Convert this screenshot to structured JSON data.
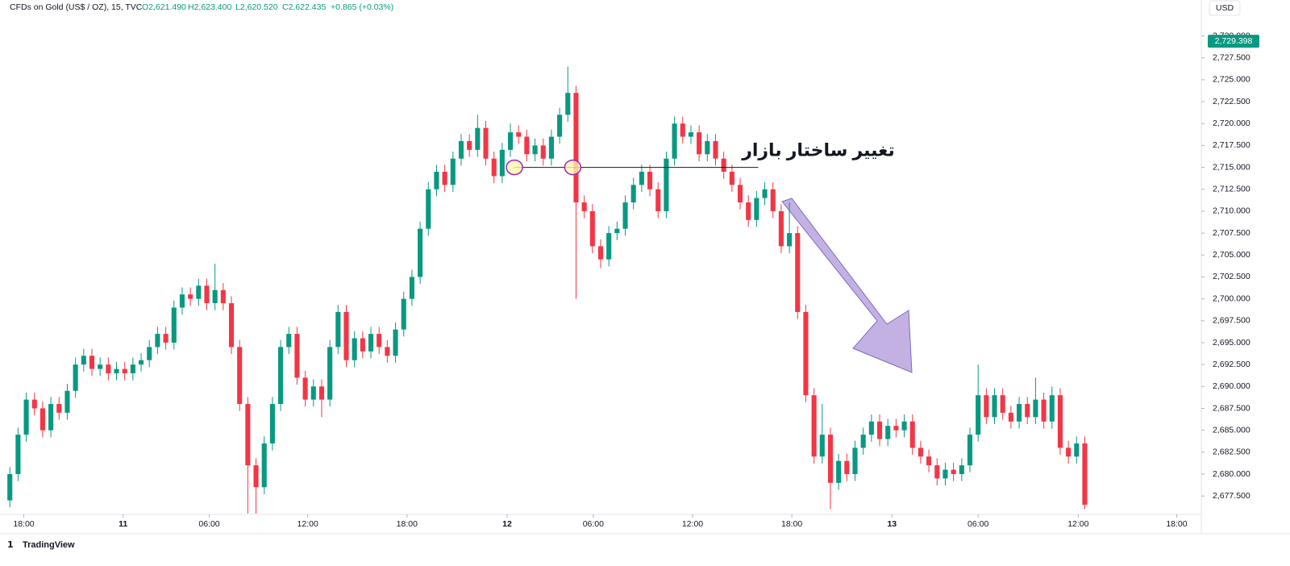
{
  "chart_data": {
    "type": "candlestick",
    "title": "CFDs on Gold (US$ / OZ), 15, TVC",
    "legend_items": [
      "O2,621.490",
      "H2,623.400",
      "L2,620.520",
      "C2,622.435",
      "+0.865 (+0.03%)"
    ],
    "currency": "USD",
    "brand": "TradingView",
    "up_color": "#089981",
    "down_color": "#f23645",
    "grid": false,
    "last_price": {
      "value": 2729.398,
      "label": "2,729.398"
    },
    "annotation": {
      "text": "تغییر ساختار بازار",
      "level": 2715
    },
    "xlim": [
      -1.2,
      145.2
    ],
    "xticks": [
      {
        "value": 1.7,
        "label": "18:00"
      },
      {
        "value": 13.8,
        "label": "11"
      },
      {
        "value": 24.3,
        "label": "06:00"
      },
      {
        "value": 36.3,
        "label": "12:00"
      },
      {
        "value": 48.4,
        "label": "18:00"
      },
      {
        "value": 60.6,
        "label": "12"
      },
      {
        "value": 71.1,
        "label": "06:00"
      },
      {
        "value": 83.2,
        "label": "12:00"
      },
      {
        "value": 95.3,
        "label": "18:00"
      },
      {
        "value": 107.5,
        "label": "13"
      },
      {
        "value": 118,
        "label": "06:00"
      },
      {
        "value": 130.2,
        "label": "12:00"
      },
      {
        "value": 142.2,
        "label": "18:00"
      }
    ],
    "ylim": [
      2675.4,
      2734.1
    ],
    "yticks": [
      {
        "value": 2677.5,
        "label": "2,677.500"
      },
      {
        "value": 2680,
        "label": "2,680.000"
      },
      {
        "value": 2682.5,
        "label": "2,682.500"
      },
      {
        "value": 2685,
        "label": "2,685.000"
      },
      {
        "value": 2687.5,
        "label": "2,687.500"
      },
      {
        "value": 2690,
        "label": "2,690.000"
      },
      {
        "value": 2692.5,
        "label": "2,692.500"
      },
      {
        "value": 2695,
        "label": "2,695.000"
      },
      {
        "value": 2697.5,
        "label": "2,697.500"
      },
      {
        "value": 2700,
        "label": "2,700.000"
      },
      {
        "value": 2702.5,
        "label": "2,702.500"
      },
      {
        "value": 2705,
        "label": "2,705.000"
      },
      {
        "value": 2707.5,
        "label": "2,707.500"
      },
      {
        "value": 2710,
        "label": "2,710.000"
      },
      {
        "value": 2712.5,
        "label": "2,712.500"
      },
      {
        "value": 2715,
        "label": "2,715.000"
      },
      {
        "value": 2717.5,
        "label": "2,717.500"
      },
      {
        "value": 2720,
        "label": "2,720.000"
      },
      {
        "value": 2722.5,
        "label": "2,722.500"
      },
      {
        "value": 2725,
        "label": "2,725.000"
      },
      {
        "value": 2727.5,
        "label": "2,727.500"
      },
      {
        "value": 2730,
        "label": "2,730.000"
      }
    ],
    "open": [
      2677.0,
      2680.0,
      2684.5,
      2688.5,
      2687.5,
      2685.0,
      2688.0,
      2687.0,
      2689.5,
      2692.5,
      2693.5,
      2692.0,
      2692.5,
      2691.5,
      2692.0,
      2691.5,
      2692.5,
      2693.0,
      2694.5,
      2696.0,
      2695.0,
      2699.0,
      2700.5,
      2700.0,
      2701.5,
      2699.5,
      2701.0,
      2699.5,
      2694.5,
      2688.0,
      2681.0,
      2678.5,
      2683.5,
      2688.0,
      2694.5,
      2696.0,
      2691.0,
      2688.5,
      2690.0,
      2688.5,
      2694.5,
      2698.5,
      2693.0,
      2695.5,
      2694.0,
      2696.0,
      2694.5,
      2693.5,
      2696.5,
      2700.0,
      2702.5,
      2708.0,
      2712.5,
      2714.5,
      2713.0,
      2716.0,
      2718.0,
      2717.0,
      2719.5,
      2716.0,
      2714.0,
      2717.0,
      2719.0,
      2718.5,
      2716.5,
      2717.5,
      2716.0,
      2718.5,
      2721.0,
      2723.5,
      2711.0,
      2710.0,
      2706.0,
      2704.5,
      2707.5,
      2708.0,
      2711.0,
      2713.0,
      2714.5,
      2712.5,
      2710.0,
      2716.0,
      2720.0,
      2718.5,
      2719.0,
      2716.5,
      2718.0,
      2716.0,
      2714.5,
      2713.0,
      2711.0,
      2709.0,
      2711.5,
      2712.5,
      2710.0,
      2706.0,
      2707.5,
      2698.5,
      2689.0,
      2682.0,
      2684.5,
      2679.0,
      2681.5,
      2680.0,
      2683.0,
      2684.5,
      2686.0,
      2684.0,
      2685.5,
      2685.0,
      2686.0,
      2683.0,
      2682.0,
      2681.0,
      2679.5,
      2680.5,
      2680.0,
      2681.0,
      2684.5,
      2689.0,
      2686.5,
      2689.0,
      2687.0,
      2686.0,
      2688.0,
      2686.5,
      2688.5,
      2686.0,
      2689.0,
      2683.0,
      2682.0,
      2683.5
    ],
    "high": [
      2680.8,
      2685.3,
      2689.3,
      2689.3,
      2688.3,
      2688.8,
      2688.8,
      2690.3,
      2693.3,
      2694.3,
      2694.3,
      2693.3,
      2693.3,
      2692.8,
      2692.8,
      2693.3,
      2693.8,
      2695.3,
      2696.8,
      2696.8,
      2699.8,
      2701.3,
      2701.3,
      2702.3,
      2702.3,
      2704.0,
      2701.8,
      2700.3,
      2695.3,
      2688.8,
      2681.8,
      2684.3,
      2688.8,
      2695.3,
      2696.8,
      2696.8,
      2691.8,
      2690.8,
      2690.8,
      2695.3,
      2699.3,
      2699.3,
      2696.3,
      2696.3,
      2696.8,
      2696.8,
      2695.3,
      2697.3,
      2700.8,
      2703.3,
      2708.8,
      2713.3,
      2715.3,
      2715.3,
      2716.8,
      2718.8,
      2718.8,
      2721.0,
      2720.3,
      2716.8,
      2717.8,
      2720.0,
      2719.8,
      2719.3,
      2718.3,
      2718.3,
      2719.3,
      2721.8,
      2726.5,
      2724.3,
      2711.8,
      2710.8,
      2706.8,
      2708.3,
      2708.8,
      2711.8,
      2713.8,
      2715.3,
      2715.3,
      2713.3,
      2716.8,
      2720.8,
      2720.8,
      2719.8,
      2719.8,
      2718.8,
      2718.8,
      2716.8,
      2715.3,
      2713.8,
      2711.8,
      2712.3,
      2713.3,
      2713.3,
      2710.8,
      2711.0,
      2708.3,
      2699.3,
      2689.8,
      2688.0,
      2685.3,
      2682.3,
      2682.3,
      2683.8,
      2685.3,
      2686.8,
      2686.8,
      2686.3,
      2686.3,
      2686.8,
      2686.8,
      2683.8,
      2682.8,
      2681.8,
      2681.3,
      2681.3,
      2681.8,
      2685.3,
      2692.5,
      2689.8,
      2689.8,
      2689.8,
      2687.8,
      2688.8,
      2688.8,
      2691.0,
      2689.3,
      2690.0,
      2689.8,
      2683.8,
      2684.3,
      2684.3
    ],
    "low": [
      2676.2,
      2679.2,
      2683.7,
      2686.7,
      2684.2,
      2684.2,
      2686.2,
      2686.2,
      2688.7,
      2691.7,
      2691.2,
      2691.2,
      2690.7,
      2690.7,
      2690.7,
      2690.7,
      2691.7,
      2692.2,
      2693.7,
      2694.2,
      2694.2,
      2698.2,
      2699.2,
      2699.2,
      2698.7,
      2698.7,
      2698.7,
      2693.7,
      2687.2,
      2675.5,
      2675.5,
      2677.7,
      2682.7,
      2687.2,
      2693.7,
      2690.2,
      2687.7,
      2687.7,
      2686.5,
      2687.7,
      2693.7,
      2692.2,
      2692.2,
      2693.2,
      2693.2,
      2693.7,
      2692.7,
      2692.7,
      2695.7,
      2699.2,
      2701.7,
      2707.2,
      2711.7,
      2712.2,
      2712.2,
      2715.2,
      2716.2,
      2716.2,
      2715.2,
      2713.2,
      2713.2,
      2716.2,
      2717.7,
      2715.7,
      2715.7,
      2715.2,
      2715.2,
      2717.7,
      2720.2,
      2700.0,
      2709.2,
      2705.2,
      2703.5,
      2703.7,
      2706.7,
      2707.2,
      2710.2,
      2712.2,
      2711.7,
      2709.2,
      2709.2,
      2715.2,
      2717.7,
      2717.7,
      2715.7,
      2715.7,
      2715.2,
      2713.7,
      2712.2,
      2710.2,
      2708.2,
      2708.2,
      2710.7,
      2709.2,
      2705.2,
      2705.2,
      2697.7,
      2688.2,
      2681.2,
      2681.2,
      2676.0,
      2678.2,
      2679.2,
      2679.2,
      2682.2,
      2683.7,
      2683.2,
      2683.2,
      2684.2,
      2684.2,
      2682.2,
      2681.2,
      2680.2,
      2678.7,
      2678.7,
      2679.2,
      2679.2,
      2680.2,
      2683.7,
      2685.7,
      2685.7,
      2686.2,
      2685.2,
      2685.2,
      2685.7,
      2685.7,
      2685.2,
      2685.2,
      2682.2,
      2681.2,
      2681.2,
      2676.0
    ],
    "close": [
      2680.0,
      2684.5,
      2688.5,
      2687.5,
      2685.0,
      2688.0,
      2687.0,
      2689.5,
      2692.5,
      2693.5,
      2692.0,
      2692.5,
      2691.5,
      2692.0,
      2691.5,
      2692.5,
      2693.0,
      2694.5,
      2696.0,
      2695.0,
      2699.0,
      2700.5,
      2700.0,
      2701.5,
      2699.5,
      2701.0,
      2699.5,
      2694.5,
      2688.0,
      2681.0,
      2678.5,
      2683.5,
      2688.0,
      2694.5,
      2696.0,
      2691.0,
      2688.5,
      2690.0,
      2688.5,
      2694.5,
      2698.5,
      2693.0,
      2695.5,
      2694.0,
      2696.0,
      2694.5,
      2693.5,
      2696.5,
      2700.0,
      2702.5,
      2708.0,
      2712.5,
      2714.5,
      2713.0,
      2716.0,
      2718.0,
      2717.0,
      2719.5,
      2716.0,
      2714.0,
      2717.0,
      2719.0,
      2718.5,
      2716.5,
      2717.5,
      2716.0,
      2718.5,
      2721.0,
      2723.5,
      2711.0,
      2710.0,
      2706.0,
      2704.5,
      2707.5,
      2708.0,
      2711.0,
      2713.0,
      2714.5,
      2712.5,
      2710.0,
      2716.0,
      2720.0,
      2718.5,
      2719.0,
      2716.5,
      2718.0,
      2716.0,
      2714.5,
      2713.0,
      2711.0,
      2709.0,
      2711.5,
      2712.5,
      2710.0,
      2706.0,
      2707.5,
      2698.5,
      2689.0,
      2682.0,
      2684.5,
      2679.0,
      2681.5,
      2680.0,
      2683.0,
      2684.5,
      2686.0,
      2684.0,
      2685.5,
      2685.0,
      2686.0,
      2683.0,
      2682.0,
      2681.0,
      2679.5,
      2680.5,
      2680.0,
      2681.0,
      2684.5,
      2689.0,
      2686.5,
      2689.0,
      2687.0,
      2686.0,
      2688.0,
      2686.5,
      2688.5,
      2686.0,
      2689.0,
      2683.0,
      2682.0,
      2683.5,
      2676.5
    ]
  }
}
